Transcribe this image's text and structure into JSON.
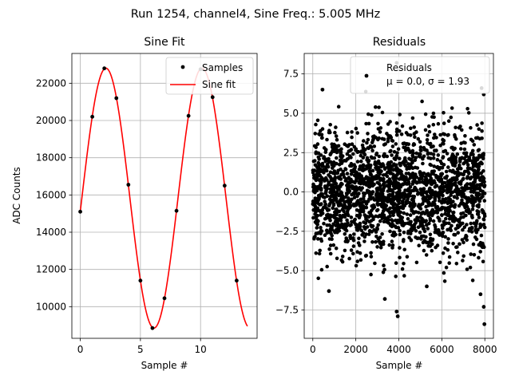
{
  "figure": {
    "suptitle": "Run 1254, channel4, Sine Freq.: 5.005 MHz"
  },
  "chart_data": [
    {
      "type": "line",
      "title": "Sine Fit",
      "xlabel": "Sample #",
      "ylabel": "ADC Counts",
      "xlim": [
        -0.7,
        14.7
      ],
      "ylim": [
        8300,
        23600
      ],
      "xticks": [
        0,
        5,
        10
      ],
      "yticks": [
        10000,
        12000,
        14000,
        16000,
        18000,
        20000,
        22000
      ],
      "grid": true,
      "legend": {
        "placement": "top-right",
        "entries": [
          "Samples",
          "Sine fit"
        ]
      },
      "series": [
        {
          "name": "Samples",
          "kind": "scatter",
          "color": "#000000",
          "x": [
            0,
            1,
            2,
            3,
            4,
            5,
            6,
            7,
            8,
            9,
            10,
            11,
            12,
            13
          ],
          "y": [
            15100,
            20200,
            22800,
            21200,
            16550,
            11400,
            8850,
            10450,
            15150,
            20250,
            22750,
            21250,
            16500,
            11400
          ]
        },
        {
          "name": "Sine fit",
          "kind": "line",
          "color": "#ff0000",
          "x_range": [
            0,
            13.9
          ],
          "amplitude": 6980,
          "offset": 15830,
          "period_samples": 7.992,
          "phase": -0.103
        }
      ]
    },
    {
      "type": "scatter",
      "title": "Residuals",
      "xlabel": "Sample #",
      "ylabel": "",
      "xlim": [
        -400,
        8400
      ],
      "ylim": [
        -9.3,
        8.8
      ],
      "xticks": [
        0,
        2000,
        4000,
        6000,
        8000
      ],
      "yticks": [
        -7.5,
        -5.0,
        -2.5,
        0.0,
        2.5,
        5.0,
        7.5
      ],
      "ytick_labels": [
        "−7.5",
        "−5.0",
        "−2.5",
        "0.0",
        "2.5",
        "5.0",
        "7.5"
      ],
      "grid": true,
      "legend": {
        "placement": "top-right",
        "entries": [
          "Residuals",
          "μ = 0.0, σ = 1.93"
        ]
      },
      "series": [
        {
          "name": "Residuals",
          "color": "#000000",
          "n_points": 8000,
          "mean": 0.0,
          "std": 1.93,
          "note_stats": "μ = 0.0, σ = 1.93"
        }
      ],
      "outliers": [
        {
          "x": 3900,
          "y": 8.2
        },
        {
          "x": 450,
          "y": 6.5
        },
        {
          "x": 7850,
          "y": 6.6
        },
        {
          "x": 7950,
          "y": 6.2
        },
        {
          "x": 3950,
          "y": -7.9
        },
        {
          "x": 3900,
          "y": -7.6
        },
        {
          "x": 7980,
          "y": -8.4
        },
        {
          "x": 7950,
          "y": -7.3
        },
        {
          "x": 3350,
          "y": -6.8
        },
        {
          "x": 750,
          "y": -6.3
        },
        {
          "x": 5300,
          "y": -6.0
        },
        {
          "x": 7800,
          "y": -6.5
        }
      ]
    }
  ]
}
